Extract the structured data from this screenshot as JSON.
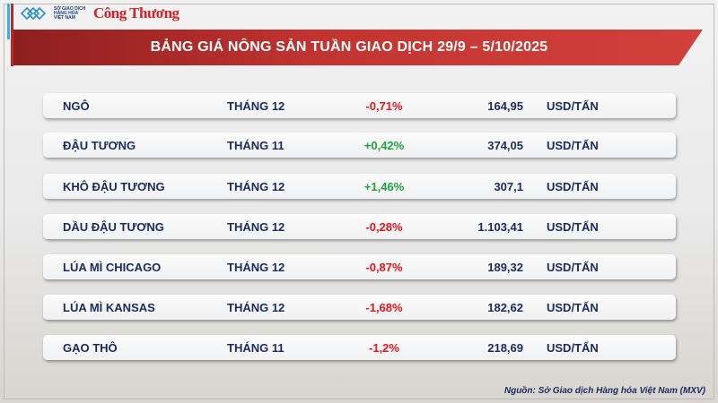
{
  "header": {
    "logo_mxv": "SỞ GIAO DỊCH HÀNG HÓA VIỆT NAM",
    "logo_brand": "Công Thương",
    "title": "BẢNG GIÁ NÔNG SẢN TUẦN GIAO DỊCH 29/9 – 5/10/2025"
  },
  "colors": {
    "accent": "#c33431",
    "negative": "#e8141b",
    "positive": "#1ea33a",
    "text": "#1a2b5e"
  },
  "rows": [
    {
      "name": "NGÔ",
      "month": "THÁNG 12",
      "change": "-0,71%",
      "direction": "down",
      "price": "164,95",
      "unit": "USD/TẤN"
    },
    {
      "name": "ĐẬU TƯƠNG",
      "month": "THÁNG 11",
      "change": "+0,42%",
      "direction": "up",
      "price": "374,05",
      "unit": "USD/TẤN"
    },
    {
      "name": "KHÔ ĐẬU TƯƠNG",
      "month": "THÁNG 12",
      "change": "+1,46%",
      "direction": "up",
      "price": "307,1",
      "unit": "USD/TẤN"
    },
    {
      "name": "DẦU ĐẬU TƯƠNG",
      "month": "THÁNG 12",
      "change": "-0,28%",
      "direction": "down",
      "price": "1.103,41",
      "unit": "USD/TẤN"
    },
    {
      "name": "LÚA MÌ CHICAGO",
      "month": "THÁNG 12",
      "change": "-0,87%",
      "direction": "down",
      "price": "189,32",
      "unit": "USD/TẤN"
    },
    {
      "name": "LÚA MÌ KANSAS",
      "month": "THÁNG 12",
      "change": "-1,68%",
      "direction": "down",
      "price": "182,62",
      "unit": "USD/TẤN"
    },
    {
      "name": "GẠO THÔ",
      "month": "THÁNG 11",
      "change": "-1,2%",
      "direction": "down",
      "price": "218,69",
      "unit": "USD/TẤN"
    }
  ],
  "footer": {
    "source": "Nguồn: Sở Giao dịch Hàng hóa Việt Nam (MXV)"
  }
}
